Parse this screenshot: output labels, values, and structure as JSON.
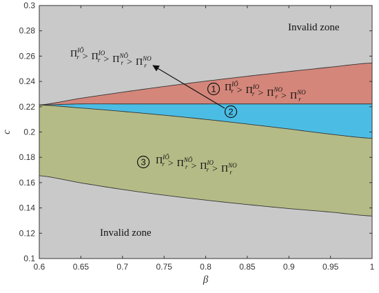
{
  "chart_data": {
    "type": "area",
    "title": "",
    "xlabel": "β",
    "ylabel": "c",
    "xlim": [
      0.6,
      1.0
    ],
    "ylim": [
      0.1,
      0.3
    ],
    "xticks": [
      "0.6",
      "0.65",
      "0.7",
      "0.75",
      "0.8",
      "0.85",
      "0.9",
      "0.95",
      "1"
    ],
    "yticks": [
      "0.1",
      "0.12",
      "0.14",
      "0.16",
      "0.18",
      "0.2",
      "0.22",
      "0.24",
      "0.26",
      "0.28",
      "0.3"
    ],
    "grid": false,
    "boundaries": {
      "x": [
        0.6,
        0.65,
        0.7,
        0.75,
        0.8,
        0.85,
        0.9,
        0.95,
        1.0
      ],
      "upper": [
        0.2214,
        0.2267,
        0.2315,
        0.236,
        0.2402,
        0.2441,
        0.2478,
        0.2513,
        0.2546
      ],
      "middle": [
        0.2214,
        0.2222,
        0.2222,
        0.2222,
        0.2222,
        0.2222,
        0.2222,
        0.2222,
        0.2222
      ],
      "lower_mid": [
        0.2214,
        0.219,
        0.2163,
        0.2133,
        0.21,
        0.2063,
        0.2024,
        0.1983,
        0.195
      ],
      "bottom": [
        0.1655,
        0.1598,
        0.1546,
        0.1501,
        0.1462,
        0.1427,
        0.1395,
        0.1367,
        0.1336
      ]
    },
    "regions": [
      {
        "id": "invalid-top",
        "color": "#c9c9c9"
      },
      {
        "id": "region-1",
        "color": "#d4867a"
      },
      {
        "id": "region-2",
        "color": "#4bbde4"
      },
      {
        "id": "region-3",
        "color": "#b5bb86"
      },
      {
        "id": "invalid-bottom",
        "color": "#c9c9c9"
      }
    ],
    "annotations": {
      "invalid_top": "Invalid zone",
      "invalid_bottom": "Invalid zone",
      "region1_num": "1",
      "region2_num": "2",
      "region3_num": "3",
      "pi": "Π",
      "r": "r",
      "gt": ">",
      "sup_IO_tilde": "IÕ",
      "sup_IO": "IO",
      "sup_NO_tilde": "NÕ",
      "sup_NO": "NO"
    }
  }
}
